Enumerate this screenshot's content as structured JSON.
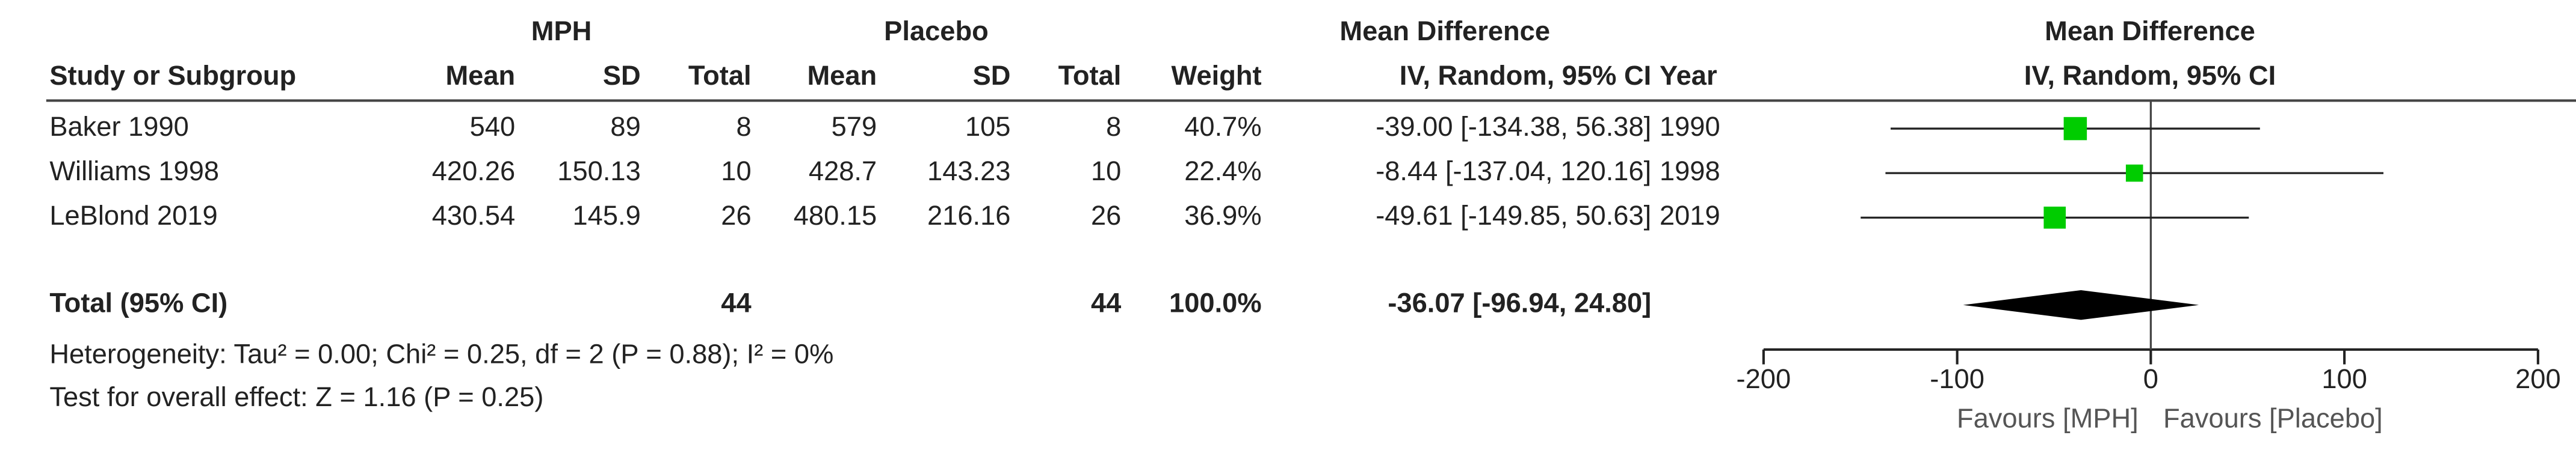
{
  "chart_data": {
    "type": "forest",
    "headers": {
      "mph": "MPH",
      "placebo": "Placebo",
      "md": "Mean Difference",
      "plot_title": "Mean Difference",
      "plot_method": "IV, Random, 95% CI"
    },
    "columns": [
      "Study or Subgroup",
      "Mean",
      "SD",
      "Total",
      "Mean",
      "SD",
      "Total",
      "Weight",
      "IV, Random, 95% CI",
      "Year"
    ],
    "rows": [
      [
        "Baker 1990",
        "540",
        "89",
        "8",
        "579",
        "105",
        "8",
        "40.7%",
        "-39.00 [-134.38, 56.38]",
        "1990"
      ],
      [
        "Williams 1998",
        "420.26",
        "150.13",
        "10",
        "428.7",
        "143.23",
        "10",
        "22.4%",
        "-8.44 [-137.04, 120.16]",
        "1998"
      ],
      [
        "LeBlond 2019",
        "430.54",
        "145.9",
        "26",
        "480.15",
        "216.16",
        "26",
        "36.9%",
        "-49.61 [-149.85, 50.63]",
        "2019"
      ]
    ],
    "total": {
      "label": "Total (95% CI)",
      "mph_total": "44",
      "placebo_total": "44",
      "weight": "100.0%",
      "ci": "-36.07 [-96.94, 24.80]"
    },
    "heterogeneity": "Heterogeneity: Tau² = 0.00; Chi² = 0.25, df = 2 (P = 0.88); I² = 0%",
    "overall_effect": "Test for overall effect: Z = 1.16 (P = 0.25)",
    "estimates": [
      -39.0,
      -8.44,
      -49.61
    ],
    "ci_low": [
      -134.38,
      -137.04,
      -149.85
    ],
    "ci_high": [
      56.38,
      120.16,
      50.63
    ],
    "weights": [
      40.7,
      22.4,
      36.9
    ],
    "pooled": {
      "estimate": -36.07,
      "low": -96.94,
      "high": 24.8
    },
    "color": "#00cc00",
    "xlim": [
      -200,
      200
    ],
    "xticks": [
      -200,
      -100,
      0,
      100,
      200
    ],
    "favours_left": "Favours [MPH]",
    "favours_right": "Favours [Placebo]"
  }
}
